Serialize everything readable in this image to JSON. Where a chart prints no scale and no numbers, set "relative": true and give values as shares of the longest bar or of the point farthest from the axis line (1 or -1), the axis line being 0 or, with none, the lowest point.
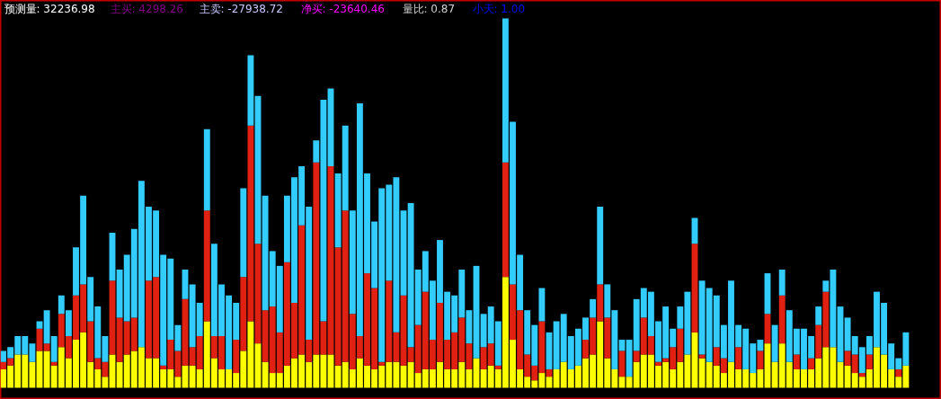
{
  "chart_data": {
    "type": "bar",
    "stacked": true,
    "relative": true,
    "annotations": [
      "预测量: 32236.98",
      "主买: 4298.26",
      "主卖: -27938.72",
      "净买: -23640.46",
      "量比: 0.87",
      "小天: 1.00"
    ],
    "categories": [
      null,
      null,
      null,
      null,
      null,
      null,
      null,
      null,
      null,
      null,
      null,
      null,
      null,
      null,
      null,
      null,
      null,
      null,
      null,
      null,
      null,
      null,
      null,
      null,
      null,
      null,
      null,
      null,
      null,
      null,
      null,
      null,
      null,
      null,
      null,
      null,
      null,
      null,
      null,
      null,
      null,
      null,
      null,
      null,
      null,
      null,
      null,
      null,
      null,
      null,
      null,
      null,
      null,
      null,
      null,
      null,
      null,
      null,
      null,
      null,
      null,
      null,
      null,
      null,
      null,
      null,
      null,
      null,
      null,
      null,
      null,
      null,
      null,
      null,
      null,
      null,
      null,
      null,
      null,
      null,
      null,
      null,
      null,
      null,
      null,
      null,
      null,
      null,
      null,
      null,
      null,
      null,
      null,
      null,
      null,
      null,
      null,
      null,
      null,
      null,
      null,
      null,
      null,
      null,
      null,
      null,
      null,
      null,
      null,
      null,
      null,
      null,
      null,
      null,
      null,
      null,
      null,
      null,
      null,
      null,
      null,
      null,
      null,
      null,
      null
    ],
    "series": [
      {
        "color": "#ffff00",
        "values": [
          0.05,
          0.06,
          0.09,
          0.09,
          0.07,
          0.1,
          0.1,
          0.06,
          0.11,
          0.08,
          0.13,
          0.15,
          0.07,
          0.05,
          0.03,
          0.09,
          0.07,
          0.09,
          0.1,
          0.11,
          0.08,
          0.08,
          0.05,
          0.05,
          0.03,
          0.06,
          0.06,
          0.05,
          0.18,
          0.08,
          0.05,
          0.05,
          0.04,
          0.1,
          0.18,
          0.12,
          0.07,
          0.04,
          0.04,
          0.06,
          0.08,
          0.09,
          0.07,
          0.09,
          0.09,
          0.09,
          0.06,
          0.07,
          0.05,
          0.08,
          0.06,
          0.05,
          0.06,
          0.07,
          0.07,
          0.06,
          0.07,
          0.04,
          0.05,
          0.05,
          0.07,
          0.05,
          0.05,
          0.07,
          0.05,
          0.08,
          0.05,
          0.06,
          0.05,
          0.3,
          0.13,
          0.05,
          0.03,
          0.02,
          0.04,
          0.03,
          0.05,
          0.07,
          0.05,
          0.06,
          0.08,
          0.09,
          0.18,
          0.08,
          0.05,
          0.03,
          0.03,
          0.07,
          0.09,
          0.09,
          0.06,
          0.07,
          0.05,
          0.07,
          0.09,
          0.15,
          0.08,
          0.07,
          0.06,
          0.04,
          0.07,
          0.05,
          0.05,
          0.04,
          0.05,
          0.12,
          0.07,
          0.12,
          0.07,
          0.05,
          0.05,
          0.05,
          0.08,
          0.11,
          0.11,
          0.07,
          0.06,
          0.04,
          0.03,
          0.05,
          0.11,
          0.09,
          0.05,
          0.03,
          0.06
        ]
      },
      {
        "color": "#e02010",
        "values": [
          0.02,
          0.02,
          0,
          0,
          0,
          0.06,
          0.02,
          0.01,
          0.09,
          0.06,
          0.12,
          0.13,
          0.11,
          0.03,
          0.04,
          0.2,
          0.12,
          0.09,
          0.09,
          0,
          0.21,
          0.22,
          0.01,
          0.08,
          0.07,
          0.18,
          0.05,
          0.09,
          0.3,
          0.06,
          0.09,
          0,
          0.09,
          0.2,
          0.53,
          0.27,
          0.14,
          0.18,
          0.11,
          0.28,
          0.15,
          0.35,
          0.06,
          0.52,
          0.09,
          0.51,
          0.32,
          0.41,
          0.15,
          0.06,
          0.25,
          0.22,
          0.01,
          0.22,
          0.08,
          0.19,
          0.04,
          0.13,
          0.21,
          0.08,
          0.16,
          0.08,
          0.1,
          0.12,
          0.07,
          0,
          0.06,
          0.06,
          0.01,
          0.31,
          0.15,
          0.16,
          0.06,
          0.04,
          0.14,
          0.02,
          0,
          0,
          0,
          0,
          0.05,
          0.1,
          0.1,
          0.11,
          0,
          0.07,
          0,
          0.03,
          0.1,
          0.05,
          0.01,
          0.01,
          0.06,
          0.09,
          0,
          0.24,
          0.01,
          0,
          0.05,
          0.04,
          0,
          0.06,
          0,
          0,
          0.05,
          0.08,
          0,
          0.13,
          0,
          0.04,
          0,
          0.03,
          0.09,
          0.15,
          0,
          0,
          0.04,
          0.05,
          0.01,
          0.04,
          0,
          0,
          0,
          0.02,
          0
        ]
      },
      {
        "color": "#33ccff",
        "values": [
          0.03,
          0.03,
          0.05,
          0.05,
          0.05,
          0.02,
          0.09,
          0.07,
          0.05,
          0.07,
          0.13,
          0.24,
          0.12,
          0.14,
          0.07,
          0.13,
          0.13,
          0.18,
          0.24,
          0.45,
          0.2,
          0.18,
          0.3,
          0.22,
          0.07,
          0.08,
          0.17,
          0.09,
          0.22,
          0.25,
          0.14,
          0.2,
          0.1,
          0.24,
          0.19,
          0.4,
          0.31,
          0.15,
          0.18,
          0.18,
          0.34,
          0.16,
          0.36,
          0.06,
          0.6,
          0.21,
          0.2,
          0.23,
          0.28,
          0.63,
          0.27,
          0.18,
          0.47,
          0.26,
          0.42,
          0.23,
          0.39,
          0.15,
          0.11,
          0.16,
          0.17,
          0.13,
          0.1,
          0.13,
          0.09,
          0.25,
          0.09,
          0.1,
          0.12,
          0.39,
          0.44,
          0.15,
          0.12,
          0.11,
          0.09,
          0.1,
          0.13,
          0.13,
          0.09,
          0.1,
          0.06,
          0.05,
          0.21,
          0.09,
          0.16,
          0.03,
          0.1,
          0.14,
          0.08,
          0.12,
          0.11,
          0.14,
          0.05,
          0.06,
          0.17,
          0.07,
          0.2,
          0.2,
          0.14,
          0.09,
          0.22,
          0.06,
          0.11,
          0.08,
          0.03,
          0.11,
          0.1,
          0.07,
          0.14,
          0.07,
          0.11,
          0.06,
          0.05,
          0.03,
          0.21,
          0.15,
          0.09,
          0.05,
          0.07,
          0.05,
          0.15,
          0.14,
          0.07,
          0.03,
          0.09
        ]
      }
    ]
  }
}
